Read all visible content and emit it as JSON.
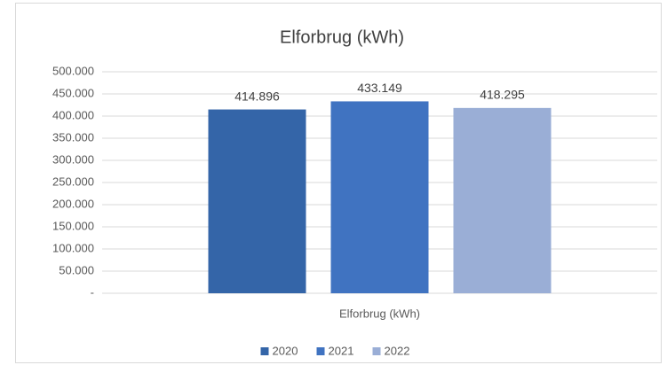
{
  "chart_data": {
    "type": "bar",
    "title": "Elforbrug (kWh)",
    "categories": [
      "Elforbrug (kWh)"
    ],
    "series": [
      {
        "name": "2020",
        "color": "#3465a8",
        "values": [
          414896
        ],
        "value_labels": [
          "414.896"
        ]
      },
      {
        "name": "2021",
        "color": "#4073c1",
        "values": [
          433149
        ],
        "value_labels": [
          "433.149"
        ]
      },
      {
        "name": "2022",
        "color": "#9aaed6",
        "values": [
          418295
        ],
        "value_labels": [
          "418.295"
        ]
      }
    ],
    "ylim": [
      0,
      500000
    ],
    "yticks": [
      {
        "value": 0,
        "label": "-"
      },
      {
        "value": 50000,
        "label": "50.000"
      },
      {
        "value": 100000,
        "label": "100.000"
      },
      {
        "value": 150000,
        "label": "150.000"
      },
      {
        "value": 200000,
        "label": "200.000"
      },
      {
        "value": 250000,
        "label": "250.000"
      },
      {
        "value": 300000,
        "label": "300.000"
      },
      {
        "value": 350000,
        "label": "350.000"
      },
      {
        "value": 400000,
        "label": "400.000"
      },
      {
        "value": 450000,
        "label": "450.000"
      },
      {
        "value": 500000,
        "label": "500.000"
      }
    ],
    "grid": true,
    "legend": "bottom"
  }
}
